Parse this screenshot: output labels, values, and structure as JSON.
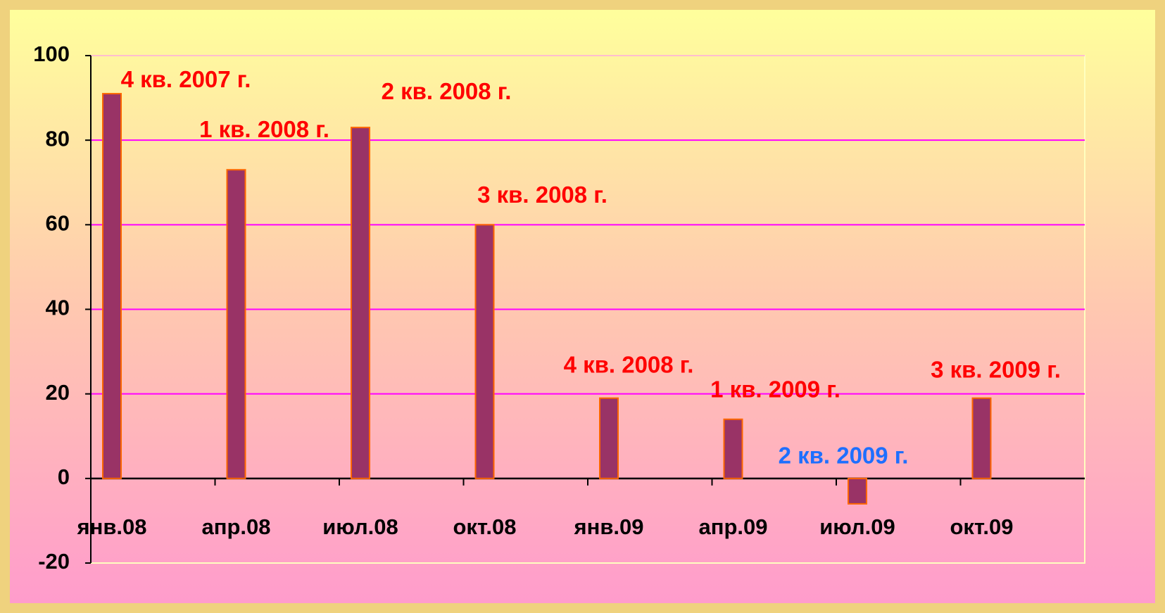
{
  "chart_data": {
    "type": "bar",
    "categories": [
      "янв.08",
      "апр.08",
      "июл.08",
      "окт.08",
      "янв.09",
      "апр.09",
      "июл.09",
      "окт.09"
    ],
    "values": [
      91,
      73,
      83,
      60,
      19,
      14,
      -6,
      19
    ],
    "annotations": [
      {
        "text": "4 кв. 2007 г.",
        "color": "#ff0000"
      },
      {
        "text": "1 кв. 2008 г.",
        "color": "#ff0000"
      },
      {
        "text": "2 кв. 2008 г.",
        "color": "#ff0000"
      },
      {
        "text": "3 кв. 2008 г.",
        "color": "#ff0000"
      },
      {
        "text": "4 кв. 2008 г.",
        "color": "#ff0000"
      },
      {
        "text": "1 кв. 2009 г.",
        "color": "#ff0000"
      },
      {
        "text": "2 кв. 2009 г.",
        "color": "#1e6fff"
      },
      {
        "text": "3 кв. 2009 г.",
        "color": "#ff0000"
      }
    ],
    "color": "#993366",
    "edge_color": "#ff6600",
    "grid_color": "#ff00ff",
    "ylim": [
      -20,
      100
    ],
    "yticks": [
      -20,
      0,
      20,
      40,
      60,
      80,
      100
    ],
    "grid": true
  }
}
